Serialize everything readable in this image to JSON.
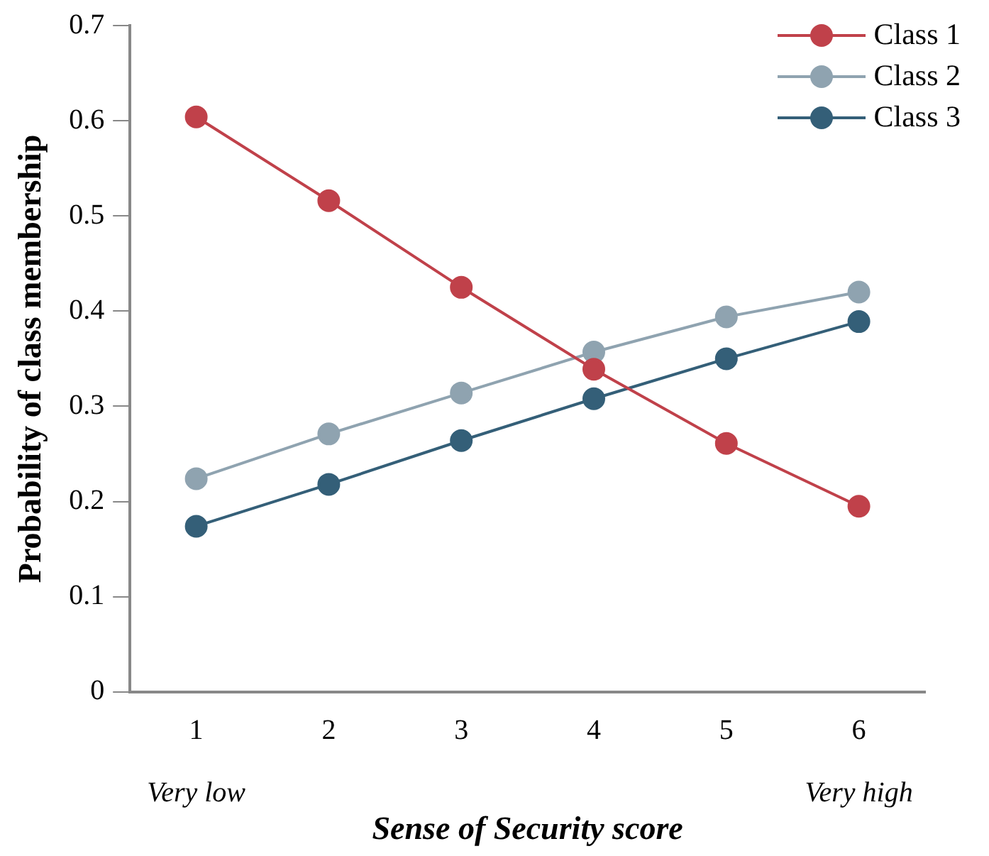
{
  "chart_data": {
    "type": "line",
    "xlabel": "Sense of Security score",
    "ylabel": "Probability of class membership",
    "categories": [
      "1",
      "2",
      "3",
      "4",
      "5",
      "6"
    ],
    "ylim": [
      0,
      0.7
    ],
    "yticks": [
      0,
      0.1,
      0.2,
      0.3,
      0.4,
      0.5,
      0.6,
      0.7
    ],
    "grid": false,
    "legend": "top right",
    "marker": "circle",
    "line_style": "solid",
    "annotations": [
      "Very low",
      "Very high"
    ],
    "series": [
      {
        "name": "Class 1",
        "color": "#c0414a",
        "values": [
          0.604,
          0.516,
          0.425,
          0.339,
          0.261,
          0.195
        ]
      },
      {
        "name": "Class 2",
        "color": "#8fa3b0",
        "values": [
          0.224,
          0.271,
          0.314,
          0.357,
          0.394,
          0.42
        ]
      },
      {
        "name": "Class 3",
        "color": "#345f78",
        "values": [
          0.174,
          0.218,
          0.264,
          0.308,
          0.35,
          0.389
        ]
      }
    ]
  }
}
